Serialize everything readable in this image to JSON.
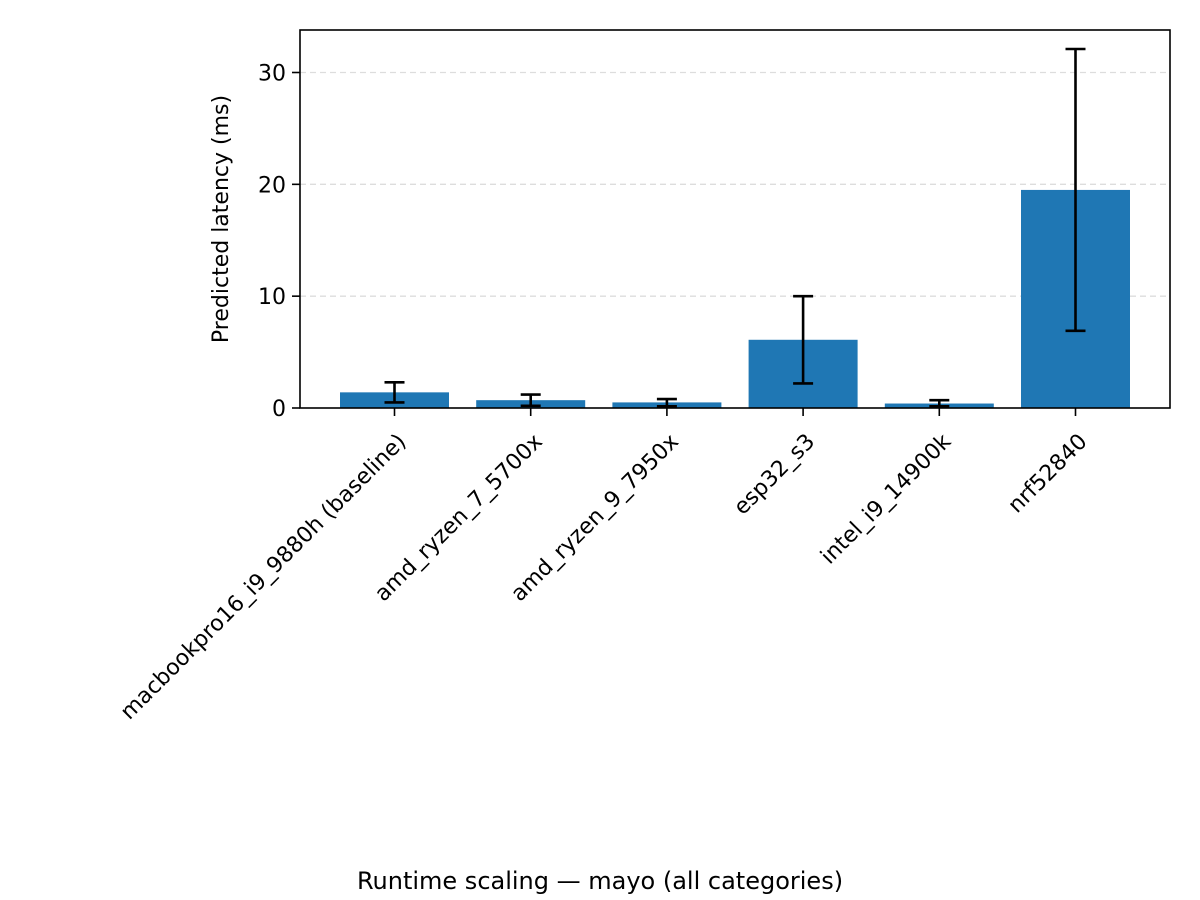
{
  "chart_data": {
    "type": "bar",
    "categories": [
      "macbookpro16_i9_9880h (baseline)",
      "amd_ryzen_7_5700x",
      "amd_ryzen_9_7950x",
      "esp32_s3",
      "intel_i9_14900k",
      "nrf52840"
    ],
    "values": [
      1.4,
      0.7,
      0.5,
      6.1,
      0.4,
      19.5
    ],
    "error_low": [
      0.5,
      0.2,
      0.15,
      2.2,
      0.15,
      6.9
    ],
    "error_high": [
      2.3,
      1.2,
      0.8,
      10.0,
      0.7,
      32.1
    ],
    "xlabel": "Runtime scaling — mayo (all categories)",
    "ylabel": "Predicted latency (ms)",
    "ylim": [
      0,
      33.8
    ],
    "yticks": [
      0,
      10,
      20,
      30
    ],
    "grid": "y",
    "colors": {
      "bar": "#1f77b4",
      "errorbar": "#000000",
      "grid": "#dddddd",
      "axis": "#000000"
    }
  }
}
